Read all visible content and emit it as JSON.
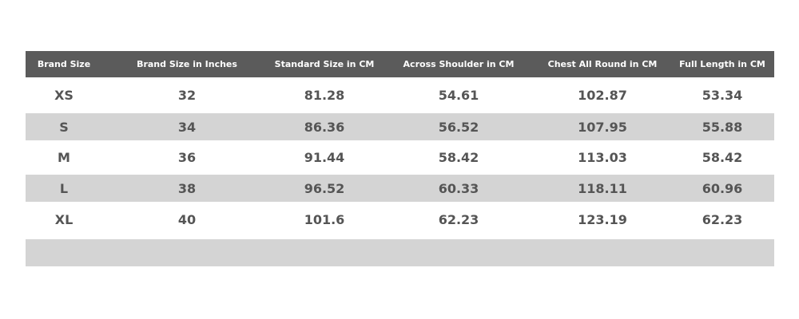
{
  "table": {
    "columns": [
      "Brand Size",
      "Brand Size in Inches",
      "Standard Size in CM",
      "Across Shoulder in CM",
      "Chest All Round in CM",
      "Full Length in CM"
    ],
    "rows": [
      [
        "XS",
        "32",
        "81.28",
        "54.61",
        "102.87",
        "53.34"
      ],
      [
        "S",
        "34",
        "86.36",
        "56.52",
        "107.95",
        "55.88"
      ],
      [
        "M",
        "36",
        "91.44",
        "58.42",
        "113.03",
        "58.42"
      ],
      [
        "L",
        "38",
        "96.52",
        "60.33",
        "118.11",
        "60.96"
      ],
      [
        "XL",
        "40",
        "101.6",
        "62.23",
        "123.19",
        "62.23"
      ]
    ]
  }
}
